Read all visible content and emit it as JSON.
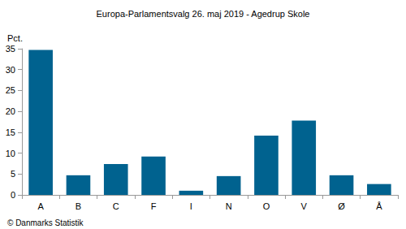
{
  "chart_data": {
    "type": "bar",
    "title": "Europa-Parlamentsvalg 26. maj 2019 - Agedrup Skole",
    "y_label": "Pct.",
    "source": "© Danmarks Statistik",
    "categories": [
      "A",
      "B",
      "C",
      "F",
      "I",
      "N",
      "O",
      "V",
      "Ø",
      "Å"
    ],
    "values": [
      34.7,
      4.7,
      7.4,
      9.2,
      1.0,
      4.5,
      14.2,
      17.8,
      4.7,
      2.6
    ],
    "color": "#00628f",
    "ylim": [
      0,
      35
    ],
    "yticks": [
      0,
      5,
      10,
      15,
      20,
      25,
      30,
      35
    ],
    "grid": false
  }
}
